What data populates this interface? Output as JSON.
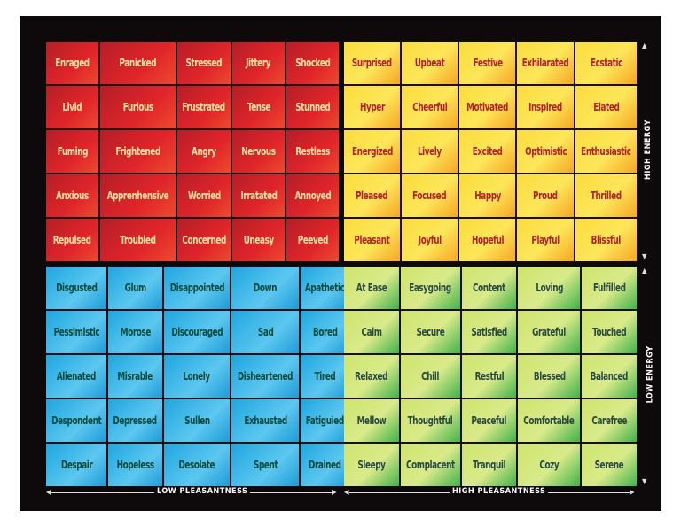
{
  "quadrants": {
    "red": [
      [
        "Enraged",
        "Panicked",
        "Stressed",
        "Jittery",
        "Shocked"
      ],
      [
        "Livid",
        "Furious",
        "Frustrated",
        "Tense",
        "Stunned"
      ],
      [
        "Fuming",
        "Frightened",
        "Angry",
        "Nervous",
        "Restless"
      ],
      [
        "Anxious",
        "Apprenhensive",
        "Worried",
        "Irratated",
        "Annoyed"
      ],
      [
        "Repulsed",
        "Troubled",
        "Concerned",
        "Uneasy",
        "Peeved"
      ]
    ],
    "yellow": [
      [
        "Surprised",
        "Upbeat",
        "Festive",
        "Exhilarated",
        "Ecstatic"
      ],
      [
        "Hyper",
        "Cheerful",
        "Motivated",
        "Inspired",
        "Elated"
      ],
      [
        "Energized",
        "Lively",
        "Excited",
        "Optimistic",
        "Enthusiastic"
      ],
      [
        "Pleased",
        "Focused",
        "Happy",
        "Proud",
        "Thrilled"
      ],
      [
        "Pleasant",
        "Joyful",
        "Hopeful",
        "Playful",
        "Blissful"
      ]
    ],
    "blue": [
      [
        "Disgusted",
        "Glum",
        "Disappointed",
        "Down",
        "Apathetic"
      ],
      [
        "Pessimistic",
        "Morose",
        "Discouraged",
        "Sad",
        "Bored"
      ],
      [
        "Alienated",
        "Misrable",
        "Lonely",
        "Disheartened",
        "Tired"
      ],
      [
        "Despondent",
        "Depressed",
        "Sullen",
        "Exhausted",
        "Fatiguied"
      ],
      [
        "Despair",
        "Hopeless",
        "Desolate",
        "Spent",
        "Drained"
      ]
    ],
    "green": [
      [
        "At Ease",
        "Easygoing",
        "Content",
        "Loving",
        "Fulfilled"
      ],
      [
        "Calm",
        "Secure",
        "Satisfied",
        "Grateful",
        "Touched"
      ],
      [
        "Relaxed",
        "Chill",
        "Restful",
        "Blessed",
        "Balanced"
      ],
      [
        "Mellow",
        "Thoughtful",
        "Peaceful",
        "Comfortable",
        "Carefree"
      ],
      [
        "Sleepy",
        "Complacent",
        "Tranquil",
        "Cozy",
        "Serene"
      ]
    ]
  },
  "axes": {
    "high_energy": "HIGH ENERGY",
    "low_energy": "LOW ENERGY",
    "low_pleasantness": "LOW PLEASANTNESS",
    "high_pleasantness": "HIGH PLEASANTNESS"
  },
  "colors": {
    "red": "#e0252a",
    "yellow": "#fde65a",
    "blue": "#5cc7f0",
    "green": "#d9ea8a"
  }
}
